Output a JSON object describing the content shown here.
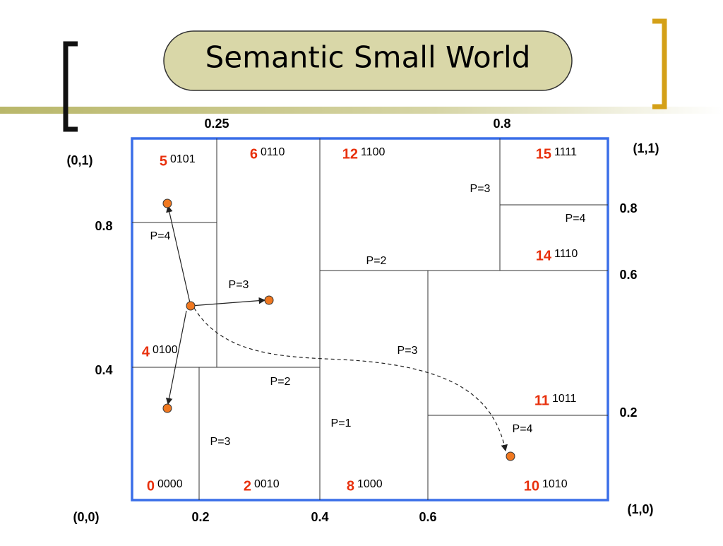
{
  "title": "Semantic Small World",
  "axis_labels": [
    "0.25",
    "0.8",
    "(0,1)",
    "(1,1)",
    "0.8",
    "0.8",
    "0.6",
    "0.4",
    "0.2",
    "(0,0)",
    "0.2",
    "0.4",
    "0.6",
    "(1,0)"
  ],
  "cells": [
    {
      "id": "5",
      "code": "0101"
    },
    {
      "id": "6",
      "code": "0110"
    },
    {
      "id": "12",
      "code": "1100"
    },
    {
      "id": "15",
      "code": "1111"
    },
    {
      "id": "14",
      "code": "1110"
    },
    {
      "id": "4",
      "code": "0100"
    },
    {
      "id": "11",
      "code": "1011"
    },
    {
      "id": "0",
      "code": "0000"
    },
    {
      "id": "2",
      "code": "0010"
    },
    {
      "id": "8",
      "code": "1000"
    },
    {
      "id": "10",
      "code": "1010"
    }
  ],
  "partition_labels": [
    "P=3",
    "P=4",
    "P=4",
    "P=2",
    "P=3",
    "P=3",
    "P=2",
    "P=1",
    "P=3",
    "P=4"
  ]
}
